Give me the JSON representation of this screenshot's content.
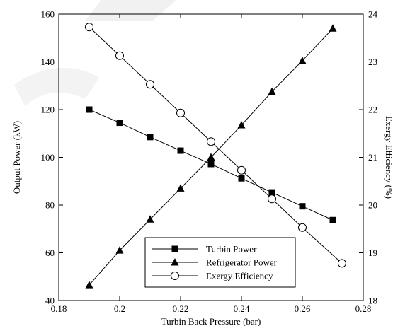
{
  "chart_data": {
    "type": "line",
    "title": "",
    "xlabel": "Turbin Back Pressure (bar)",
    "ylabel": "Output Power (kW)",
    "y2label": "Exergy Efficiency (%)",
    "xlim": [
      0.18,
      0.28
    ],
    "ylim": [
      40,
      160
    ],
    "y2lim": [
      18,
      24
    ],
    "xticks": [
      "0.18",
      "0.2",
      "0.22",
      "0.24",
      "0.26",
      "0.28"
    ],
    "yticks": [
      "40",
      "60",
      "80",
      "100",
      "120",
      "140",
      "160"
    ],
    "y2ticks": [
      "18",
      "19",
      "20",
      "21",
      "22",
      "23",
      "24"
    ],
    "grid": false,
    "legend_position": "bottom-center",
    "series": [
      {
        "name": "Turbin Power",
        "axis": "left",
        "marker": "filled-square",
        "x": [
          0.19,
          0.2,
          0.21,
          0.22,
          0.23,
          0.24,
          0.25,
          0.26,
          0.27
        ],
        "values": [
          120,
          114.5,
          108.5,
          102.8,
          97.2,
          91.2,
          85.3,
          79.5,
          73.7
        ]
      },
      {
        "name": "Refrigerator Power",
        "axis": "left",
        "marker": "filled-triangle",
        "x": [
          0.19,
          0.2,
          0.21,
          0.22,
          0.23,
          0.24,
          0.25,
          0.26,
          0.27
        ],
        "values": [
          46.5,
          61,
          74,
          87,
          100,
          113.5,
          127.5,
          140.5,
          154
        ]
      },
      {
        "name": "Exergy Efficiency",
        "axis": "right",
        "marker": "open-circle",
        "x": [
          0.19,
          0.2,
          0.21,
          0.22,
          0.23,
          0.24,
          0.25,
          0.26,
          0.273
        ],
        "values": [
          23.73,
          23.13,
          22.53,
          21.93,
          21.33,
          20.73,
          20.13,
          19.53,
          18.78
        ]
      }
    ]
  }
}
